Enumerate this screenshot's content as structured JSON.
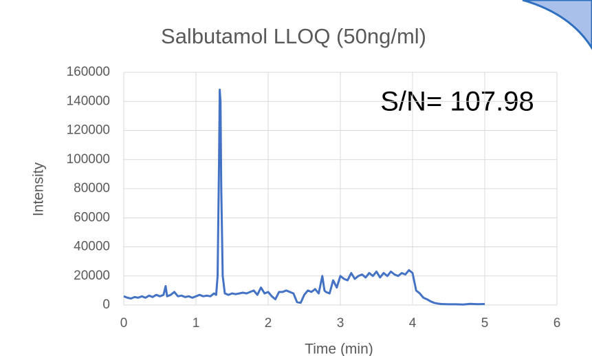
{
  "chart_data": {
    "type": "line",
    "title": "Salbutamol LLOQ (50ng/ml)",
    "annotation": "S/N= 107.98",
    "x_label": "Time (min)",
    "y_label": "Intensity",
    "xlim": [
      0,
      6
    ],
    "xticks": [
      0,
      1,
      2,
      3,
      4,
      5,
      6
    ],
    "ylim": [
      0,
      160000
    ],
    "yticks": [
      0,
      20000,
      40000,
      60000,
      80000,
      100000,
      120000,
      140000,
      160000
    ],
    "grid": true,
    "x": [
      0,
      0.05,
      0.1,
      0.15,
      0.2,
      0.25,
      0.3,
      0.35,
      0.4,
      0.45,
      0.5,
      0.55,
      0.58,
      0.6,
      0.65,
      0.7,
      0.75,
      0.8,
      0.85,
      0.9,
      0.95,
      1.0,
      1.05,
      1.1,
      1.15,
      1.2,
      1.25,
      1.28,
      1.3,
      1.32,
      1.33,
      1.34,
      1.35,
      1.37,
      1.4,
      1.45,
      1.5,
      1.55,
      1.6,
      1.65,
      1.7,
      1.75,
      1.8,
      1.85,
      1.9,
      1.95,
      2.0,
      2.05,
      2.1,
      2.15,
      2.2,
      2.25,
      2.3,
      2.35,
      2.4,
      2.45,
      2.5,
      2.55,
      2.6,
      2.65,
      2.7,
      2.75,
      2.78,
      2.8,
      2.85,
      2.9,
      2.95,
      3.0,
      3.05,
      3.1,
      3.15,
      3.2,
      3.25,
      3.3,
      3.35,
      3.4,
      3.45,
      3.5,
      3.55,
      3.6,
      3.65,
      3.7,
      3.75,
      3.8,
      3.85,
      3.9,
      3.95,
      4.0,
      4.05,
      4.1,
      4.15,
      4.2,
      4.25,
      4.3,
      4.35,
      4.4,
      4.5,
      4.6,
      4.7,
      4.8,
      4.9,
      5.0
    ],
    "series": [
      {
        "name": "Intensity",
        "color": "#4472c4",
        "values": [
          6000,
          5000,
          4500,
          5500,
          5000,
          6000,
          5000,
          6500,
          5500,
          7000,
          6000,
          7000,
          13000,
          6000,
          7000,
          9000,
          6000,
          6500,
          5500,
          6000,
          5000,
          6000,
          7000,
          6000,
          6500,
          6000,
          8000,
          7000,
          20000,
          100000,
          148000,
          140000,
          80000,
          20000,
          8000,
          7000,
          8000,
          7500,
          8000,
          8500,
          8000,
          9000,
          10000,
          7000,
          12000,
          8000,
          9000,
          6000,
          4000,
          9000,
          9000,
          10000,
          9000,
          8000,
          2000,
          1500,
          7000,
          10000,
          9000,
          11000,
          8000,
          20000,
          10000,
          9000,
          8000,
          17000,
          12000,
          20000,
          18000,
          17000,
          22000,
          18000,
          20000,
          21000,
          19000,
          22000,
          20000,
          23000,
          19000,
          22000,
          20000,
          23000,
          21000,
          20000,
          22000,
          21000,
          24000,
          22000,
          10000,
          8000,
          5000,
          4000,
          2500,
          1500,
          1000,
          700,
          500,
          500,
          400,
          800,
          600,
          700
        ]
      }
    ]
  }
}
